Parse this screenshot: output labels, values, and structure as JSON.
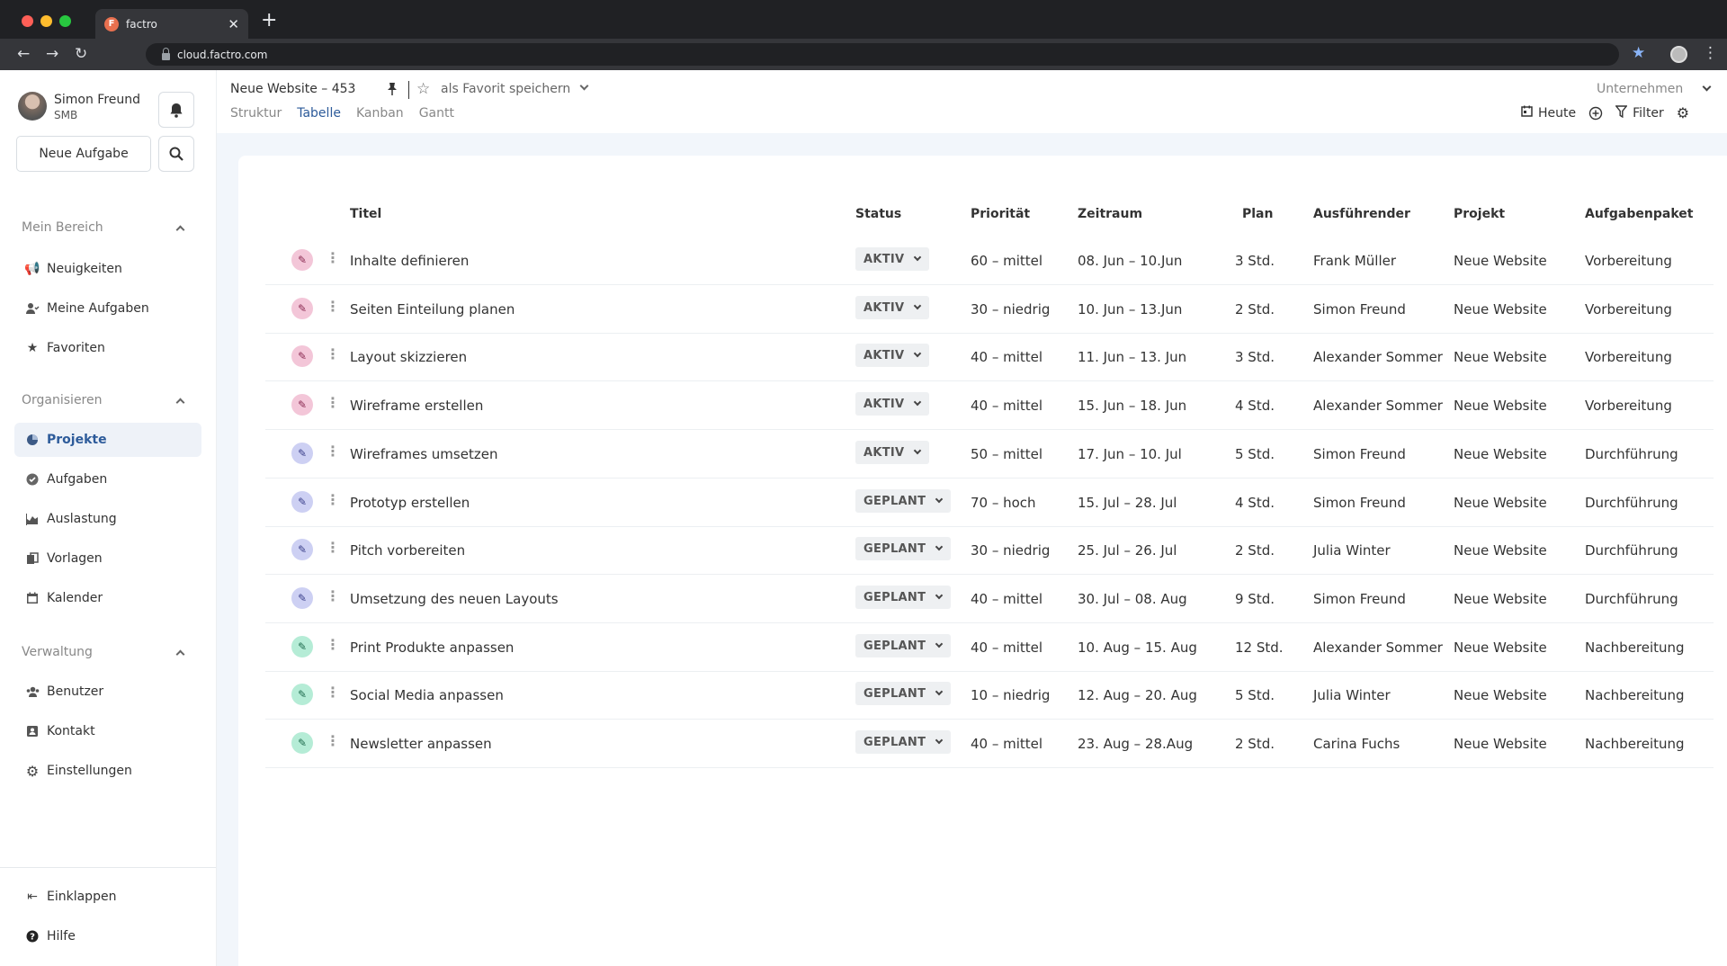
{
  "browser": {
    "tab_title": "factro",
    "tab_favicon": "F",
    "url": "cloud.factro.com"
  },
  "sidebar": {
    "user_name": "Simon Freund",
    "user_org": "SMB",
    "new_task_label": "Neue Aufgabe",
    "sections": {
      "mein_bereich": "Mein Bereich",
      "organisieren": "Organisieren",
      "verwaltung": "Verwaltung"
    },
    "items": {
      "neuigkeiten": "Neuigkeiten",
      "meine_aufgaben": "Meine Aufgaben",
      "favoriten": "Favoriten",
      "projekte": "Projekte",
      "aufgaben": "Aufgaben",
      "auslastung": "Auslastung",
      "vorlagen": "Vorlagen",
      "kalender": "Kalender",
      "benutzer": "Benutzer",
      "kontakt": "Kontakt",
      "einstellungen": "Einstellungen",
      "einklappen": "Einklappen",
      "hilfe": "Hilfe"
    }
  },
  "header": {
    "project_title": "Neue Website – 453",
    "favorite_label": "als Favorit speichern",
    "company_select": "Unternehmen",
    "tabs": [
      "Struktur",
      "Tabelle",
      "Kanban",
      "Gantt"
    ],
    "active_tab": "Tabelle",
    "today_label": "Heute",
    "filter_label": "Filter"
  },
  "table": {
    "columns": {
      "titel": "Titel",
      "status": "Status",
      "prioritaet": "Priorität",
      "zeitraum": "Zeitraum",
      "plan": "Plan",
      "ausfuehrender": "Ausführender",
      "projekt": "Projekt",
      "aufgabenpaket": "Aufgabenpaket"
    },
    "rows": [
      {
        "color": "pink",
        "titel": "Inhalte definieren",
        "status": "AKTIV",
        "prioritaet": "60 – mittel",
        "zeitraum": "08. Jun – 10.Jun",
        "plan": "3 Std.",
        "ausfuehrender": "Frank Müller",
        "projekt": "Neue Website",
        "aufgabenpaket": "Vorbereitung"
      },
      {
        "color": "pink",
        "titel": "Seiten Einteilung planen",
        "status": "AKTIV",
        "prioritaet": "30 – niedrig",
        "zeitraum": "10. Jun – 13.Jun",
        "plan": "2 Std.",
        "ausfuehrender": "Simon Freund",
        "projekt": "Neue Website",
        "aufgabenpaket": "Vorbereitung"
      },
      {
        "color": "pink",
        "titel": "Layout skizzieren",
        "status": "AKTIV",
        "prioritaet": "40 – mittel",
        "zeitraum": "11. Jun – 13. Jun",
        "plan": "3 Std.",
        "ausfuehrender": "Alexander Sommer",
        "projekt": "Neue Website",
        "aufgabenpaket": "Vorbereitung"
      },
      {
        "color": "pink",
        "titel": "Wireframe erstellen",
        "status": "AKTIV",
        "prioritaet": "40 – mittel",
        "zeitraum": "15. Jun – 18. Jun",
        "plan": "4 Std.",
        "ausfuehrender": "Alexander Sommer",
        "projekt": "Neue Website",
        "aufgabenpaket": "Vorbereitung"
      },
      {
        "color": "purple",
        "titel": "Wireframes umsetzen",
        "status": "AKTIV",
        "prioritaet": "50 – mittel",
        "zeitraum": "17. Jun – 10. Jul",
        "plan": "5 Std.",
        "ausfuehrender": "Simon Freund",
        "projekt": "Neue Website",
        "aufgabenpaket": "Durchführung"
      },
      {
        "color": "purple",
        "titel": "Prototyp erstellen",
        "status": "GEPLANT",
        "prioritaet": "70 – hoch",
        "zeitraum": "15. Jul – 28. Jul",
        "plan": "4 Std.",
        "ausfuehrender": "Simon Freund",
        "projekt": "Neue Website",
        "aufgabenpaket": "Durchführung"
      },
      {
        "color": "purple",
        "titel": "Pitch vorbereiten",
        "status": "GEPLANT",
        "prioritaet": "30 – niedrig",
        "zeitraum": "25. Jul – 26. Jul",
        "plan": "2 Std.",
        "ausfuehrender": "Julia Winter",
        "projekt": "Neue Website",
        "aufgabenpaket": "Durchführung"
      },
      {
        "color": "purple",
        "titel": "Umsetzung des neuen Layouts",
        "status": "GEPLANT",
        "prioritaet": "40 – mittel",
        "zeitraum": "30. Jul – 08. Aug",
        "plan": "9 Std.",
        "ausfuehrender": "Simon Freund",
        "projekt": "Neue Website",
        "aufgabenpaket": "Durchführung"
      },
      {
        "color": "green",
        "titel": "Print Produkte anpassen",
        "status": "GEPLANT",
        "prioritaet": "40 – mittel",
        "zeitraum": "10. Aug – 15. Aug",
        "plan": "12 Std.",
        "ausfuehrender": "Alexander Sommer",
        "projekt": "Neue Website",
        "aufgabenpaket": "Nachbereitung"
      },
      {
        "color": "green",
        "titel": "Social Media anpassen",
        "status": "GEPLANT",
        "prioritaet": "10 – niedrig",
        "zeitraum": "12. Aug – 20. Aug",
        "plan": "5 Std.",
        "ausfuehrender": "Julia Winter",
        "projekt": "Neue Website",
        "aufgabenpaket": "Nachbereitung"
      },
      {
        "color": "green",
        "titel": "Newsletter anpassen",
        "status": "GEPLANT",
        "prioritaet": "40 – mittel",
        "zeitraum": "23. Aug – 28.Aug",
        "plan": "2 Std.",
        "ausfuehrender": "Carina Fuchs",
        "projekt": "Neue Website",
        "aufgabenpaket": "Nachbereitung"
      }
    ]
  },
  "colors": {
    "pink": "#f3c6d8",
    "purple": "#cdd0f3",
    "green": "#b5ecd6",
    "accent": "#2d5b9a",
    "main_bg": "#f2f6fb"
  }
}
